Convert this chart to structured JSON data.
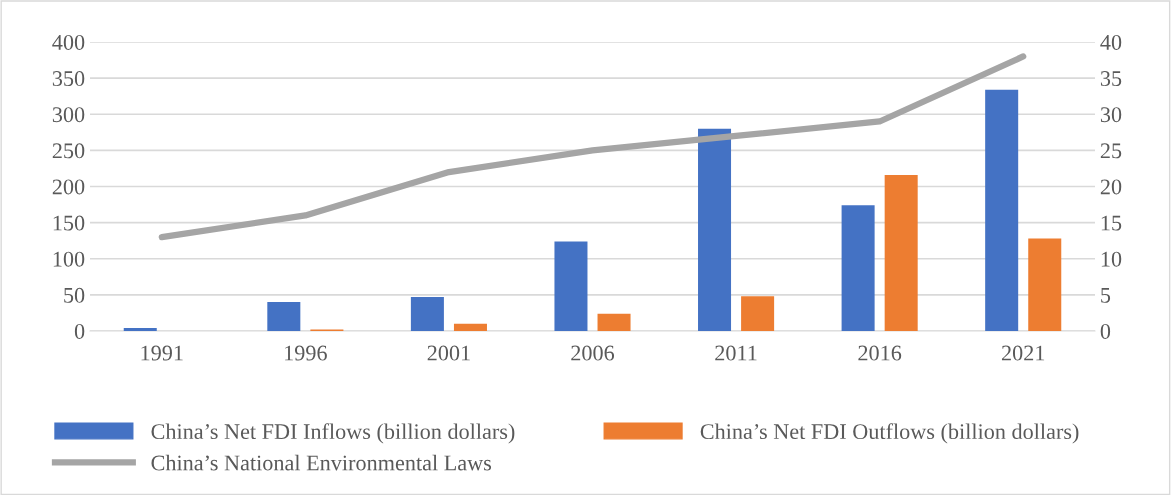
{
  "chart_data": {
    "type": "bar",
    "categories": [
      "1991",
      "1996",
      "2001",
      "2006",
      "2011",
      "2016",
      "2021"
    ],
    "series": [
      {
        "name": "China’s Net FDI Inflows (billion dollars)",
        "color": "#4472c4",
        "values": [
          4,
          40,
          47,
          124,
          280,
          174,
          334
        ]
      },
      {
        "name": "China’s Net FDI Outflows (billion dollars)",
        "color": "#ed7d31",
        "values": [
          0,
          2,
          10,
          24,
          48,
          216,
          128
        ]
      },
      {
        "name": "China’s National Environmental Laws",
        "color": "#a5a5a5",
        "type": "line",
        "axis": "y2",
        "values": [
          13,
          16,
          22,
          25,
          27,
          29,
          38
        ]
      }
    ],
    "ylim": [
      0,
      400
    ],
    "yticks": [
      0,
      50,
      100,
      150,
      200,
      250,
      300,
      350,
      400
    ],
    "y2lim": [
      0,
      40
    ],
    "y2ticks": [
      0,
      5,
      10,
      15,
      20,
      25,
      30,
      35,
      40
    ],
    "grid": "y",
    "legend": "bottom",
    "marker": "none",
    "line_style": "solid"
  }
}
